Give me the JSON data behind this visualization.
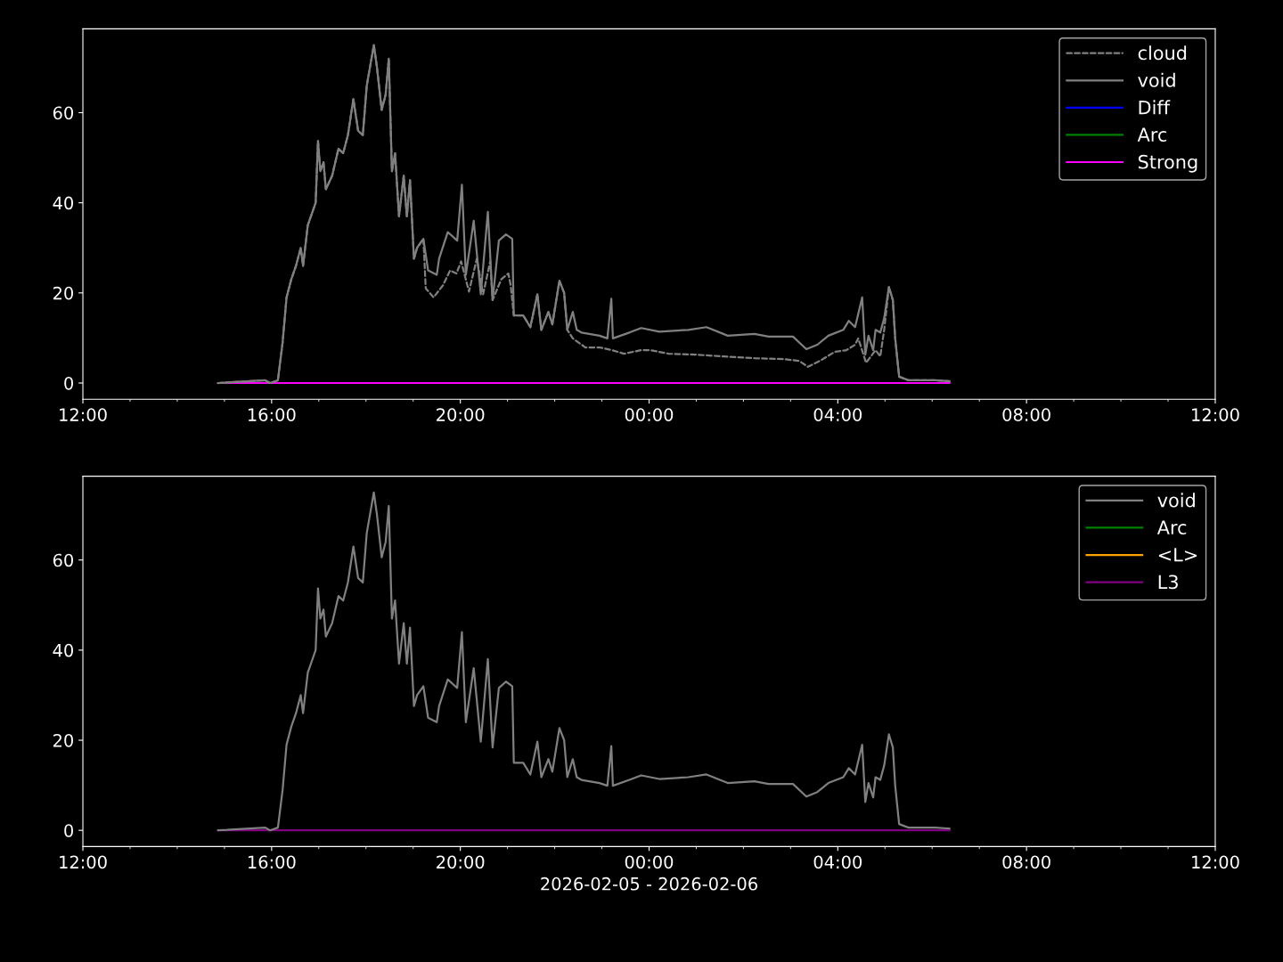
{
  "chart_data": [
    {
      "type": "line",
      "xlim": [
        "2026-02-05T12:00",
        "2026-02-06T12:00"
      ],
      "ylim": [
        -3.6,
        78.6
      ],
      "yticks": [
        0,
        20,
        40,
        60
      ],
      "xticks": [
        {
          "value": "2026-02-05T12:00",
          "label": "12:00"
        },
        {
          "value": "2026-02-05T13:00",
          "label": null
        },
        {
          "value": "2026-02-05T14:00",
          "label": null
        },
        {
          "value": "2026-02-05T15:00",
          "label": null
        },
        {
          "value": "2026-02-05T16:00",
          "label": "16:00"
        },
        {
          "value": "2026-02-05T17:00",
          "label": null
        },
        {
          "value": "2026-02-05T18:00",
          "label": null
        },
        {
          "value": "2026-02-05T19:00",
          "label": null
        },
        {
          "value": "2026-02-05T20:00",
          "label": "20:00"
        },
        {
          "value": "2026-02-05T21:00",
          "label": null
        },
        {
          "value": "2026-02-05T22:00",
          "label": null
        },
        {
          "value": "2026-02-05T23:00",
          "label": null
        },
        {
          "value": "2026-02-06T00:00",
          "label": "00:00"
        },
        {
          "value": "2026-02-06T01:00",
          "label": null
        },
        {
          "value": "2026-02-06T02:00",
          "label": null
        },
        {
          "value": "2026-02-06T03:00",
          "label": null
        },
        {
          "value": "2026-02-06T04:00",
          "label": "04:00"
        },
        {
          "value": "2026-02-06T05:00",
          "label": null
        },
        {
          "value": "2026-02-06T06:00",
          "label": null
        },
        {
          "value": "2026-02-06T07:00",
          "label": null
        },
        {
          "value": "2026-02-06T08:00",
          "label": "08:00"
        },
        {
          "value": "2026-02-06T09:00",
          "label": null
        },
        {
          "value": "2026-02-06T10:00",
          "label": null
        },
        {
          "value": "2026-02-06T11:00",
          "label": null
        },
        {
          "value": "2026-02-06T12:00",
          "label": "12:00"
        }
      ],
      "grid": false,
      "legend": "top right",
      "series": [
        {
          "name": "cloud",
          "color": "#808080",
          "line_style": "dashed",
          "x": [
            "2026-02-05T14:52",
            "2026-02-05T15:52",
            "2026-02-05T15:58",
            "2026-02-05T16:08",
            "2026-02-05T16:14",
            "2026-02-05T16:19",
            "2026-02-05T16:25",
            "2026-02-05T16:31",
            "2026-02-05T16:37",
            "2026-02-05T16:40",
            "2026-02-05T16:46",
            "2026-02-05T16:51",
            "2026-02-05T16:56",
            "2026-02-05T16:59",
            "2026-02-05T17:02",
            "2026-02-05T17:06",
            "2026-02-05T17:09",
            "2026-02-05T17:17",
            "2026-02-05T17:25",
            "2026-02-05T17:31",
            "2026-02-05T17:37",
            "2026-02-05T17:44",
            "2026-02-05T17:50",
            "2026-02-05T17:56",
            "2026-02-05T18:01",
            "2026-02-05T18:05",
            "2026-02-05T18:10",
            "2026-02-05T18:14",
            "2026-02-05T18:20",
            "2026-02-05T18:25",
            "2026-02-05T18:29",
            "2026-02-05T18:33",
            "2026-02-05T18:37",
            "2026-02-05T18:42",
            "2026-02-05T18:48",
            "2026-02-05T18:52",
            "2026-02-05T18:56",
            "2026-02-05T19:01",
            "2026-02-05T19:05",
            "2026-02-05T19:13",
            "2026-02-05T19:16",
            "2026-02-05T19:26",
            "2026-02-05T19:38",
            "2026-02-05T19:47",
            "2026-02-05T19:55",
            "2026-02-05T20:01",
            "2026-02-05T20:11",
            "2026-02-05T20:21",
            "2026-02-05T20:29",
            "2026-02-05T20:38",
            "2026-02-05T20:41",
            "2026-02-05T20:52",
            "2026-02-05T21:01",
            "2026-02-05T21:04",
            "2026-02-05T21:08",
            "2026-02-05T21:20",
            "2026-02-05T21:29",
            "2026-02-05T21:38",
            "2026-02-05T21:43",
            "2026-02-05T21:52",
            "2026-02-05T21:57",
            "2026-02-05T22:06",
            "2026-02-05T22:12",
            "2026-02-05T22:16",
            "2026-02-05T22:23",
            "2026-02-05T22:39",
            "2026-02-05T22:57",
            "2026-02-05T23:13",
            "2026-02-05T23:28",
            "2026-02-05T23:50",
            "2026-02-06T00:02",
            "2026-02-06T00:13",
            "2026-02-06T00:25",
            "2026-02-06T00:58",
            "2026-02-06T01:35",
            "2026-02-06T02:14",
            "2026-02-06T02:52",
            "2026-02-06T03:11",
            "2026-02-06T03:22",
            "2026-02-06T03:37",
            "2026-02-06T03:56",
            "2026-02-06T04:11",
            "2026-02-06T04:22",
            "2026-02-06T04:26",
            "2026-02-06T04:36",
            "2026-02-06T04:48",
            "2026-02-06T04:54",
            "2026-02-06T04:59",
            "2026-02-06T05:05",
            "2026-02-06T05:10",
            "2026-02-06T05:13",
            "2026-02-06T05:18",
            "2026-02-06T05:30",
            "2026-02-06T06:04",
            "2026-02-06T06:22"
          ],
          "values": [
            0,
            0.6,
            0,
            0.6,
            9,
            19,
            23,
            26,
            30,
            26,
            35,
            37.5,
            40,
            53.7,
            47,
            49,
            43,
            46,
            52,
            51,
            55,
            63,
            56,
            55,
            66,
            70,
            75,
            70,
            60.6,
            64,
            72,
            47,
            51,
            37,
            46,
            37,
            45,
            27.6,
            30,
            32,
            21,
            19,
            21.7,
            25,
            24.3,
            27,
            20.3,
            27.6,
            19.7,
            27,
            18.4,
            23,
            24.3,
            21.7,
            15,
            15,
            12.4,
            19.7,
            11.8,
            15.8,
            13,
            22.7,
            20,
            11.8,
            9.9,
            7.9,
            7.9,
            7.3,
            6.5,
            7.3,
            7.3,
            6.9,
            6.5,
            6.3,
            5.9,
            5.5,
            5.3,
            4.9,
            3.6,
            4.9,
            6.9,
            7.3,
            8.5,
            9.9,
            4.5,
            7.3,
            5.9,
            11.8,
            21.3,
            18.4,
            9.9,
            1.4,
            0.6,
            0.6,
            0.4
          ]
        },
        {
          "name": "void",
          "color": "#808080",
          "line_style": "solid",
          "x": [
            "2026-02-05T14:52",
            "2026-02-05T15:52",
            "2026-02-05T15:58",
            "2026-02-05T16:08",
            "2026-02-05T16:14",
            "2026-02-05T16:19",
            "2026-02-05T16:25",
            "2026-02-05T16:31",
            "2026-02-05T16:37",
            "2026-02-05T16:40",
            "2026-02-05T16:46",
            "2026-02-05T16:51",
            "2026-02-05T16:56",
            "2026-02-05T16:59",
            "2026-02-05T17:02",
            "2026-02-05T17:06",
            "2026-02-05T17:09",
            "2026-02-05T17:17",
            "2026-02-05T17:25",
            "2026-02-05T17:31",
            "2026-02-05T17:37",
            "2026-02-05T17:44",
            "2026-02-05T17:50",
            "2026-02-05T17:56",
            "2026-02-05T18:01",
            "2026-02-05T18:05",
            "2026-02-05T18:10",
            "2026-02-05T18:14",
            "2026-02-05T18:20",
            "2026-02-05T18:25",
            "2026-02-05T18:29",
            "2026-02-05T18:33",
            "2026-02-05T18:37",
            "2026-02-05T18:42",
            "2026-02-05T18:48",
            "2026-02-05T18:52",
            "2026-02-05T18:56",
            "2026-02-05T19:01",
            "2026-02-05T19:05",
            "2026-02-05T19:13",
            "2026-02-05T19:19",
            "2026-02-05T19:30",
            "2026-02-05T19:33",
            "2026-02-05T19:44",
            "2026-02-05T19:56",
            "2026-02-05T20:02",
            "2026-02-05T20:07",
            "2026-02-05T20:17",
            "2026-02-05T20:26",
            "2026-02-05T20:35",
            "2026-02-05T20:41",
            "2026-02-05T20:49",
            "2026-02-05T20:58",
            "2026-02-05T21:06",
            "2026-02-05T21:08",
            "2026-02-05T21:20",
            "2026-02-05T21:29",
            "2026-02-05T21:38",
            "2026-02-05T21:43",
            "2026-02-05T21:52",
            "2026-02-05T21:57",
            "2026-02-05T22:06",
            "2026-02-05T22:12",
            "2026-02-05T22:16",
            "2026-02-05T22:23",
            "2026-02-05T22:28",
            "2026-02-05T22:34",
            "2026-02-05T22:57",
            "2026-02-05T23:07",
            "2026-02-05T23:12",
            "2026-02-05T23:14",
            "2026-02-05T23:35",
            "2026-02-05T23:50",
            "2026-02-06T00:13",
            "2026-02-06T00:50",
            "2026-02-06T01:13",
            "2026-02-06T01:40",
            "2026-02-06T02:14",
            "2026-02-06T02:32",
            "2026-02-06T03:03",
            "2026-02-06T03:20",
            "2026-02-06T03:34",
            "2026-02-06T03:48",
            "2026-02-06T04:07",
            "2026-02-06T04:14",
            "2026-02-06T04:22",
            "2026-02-06T04:31",
            "2026-02-06T04:35",
            "2026-02-06T04:39",
            "2026-02-06T04:45",
            "2026-02-06T04:48",
            "2026-02-06T04:54",
            "2026-02-06T04:59",
            "2026-02-06T05:05",
            "2026-02-06T05:10",
            "2026-02-06T05:13",
            "2026-02-06T05:18",
            "2026-02-06T05:30",
            "2026-02-06T06:04",
            "2026-02-06T06:22"
          ],
          "values": [
            0,
            0.6,
            0,
            0.6,
            9,
            19,
            23,
            26,
            30,
            26,
            35,
            37.5,
            40,
            53.7,
            47,
            49,
            43,
            46,
            52,
            51,
            55,
            63,
            56,
            55,
            66,
            70,
            75,
            70,
            60.6,
            64,
            72,
            47,
            51,
            37,
            46,
            37,
            45,
            27.6,
            30,
            32,
            25,
            24,
            27.6,
            33.5,
            31.6,
            44,
            24,
            36,
            19.7,
            38,
            18.4,
            31.6,
            33,
            32,
            15,
            15,
            12.4,
            19.7,
            11.8,
            15.8,
            13,
            22.7,
            20,
            11.8,
            15.8,
            11.8,
            11.2,
            10.5,
            9.9,
            18.7,
            9.9,
            11.2,
            12.2,
            11.4,
            11.8,
            12.4,
            10.5,
            10.9,
            10.3,
            10.3,
            7.5,
            8.5,
            10.5,
            11.8,
            13.8,
            12.4,
            19,
            6.3,
            10.5,
            7.3,
            11.8,
            11.2,
            14.4,
            21.3,
            18.4,
            9.9,
            1.4,
            0.6,
            0.6,
            0.4
          ]
        },
        {
          "name": "Diff",
          "color": "#0000ff",
          "line_style": "solid"
        },
        {
          "name": "Arc",
          "color": "#008000",
          "line_style": "solid"
        },
        {
          "name": "Strong",
          "color": "#ff00ff",
          "line_style": "solid",
          "x": [
            "2026-02-05T14:52",
            "2026-02-06T06:22"
          ],
          "values": [
            0,
            0
          ]
        }
      ]
    },
    {
      "type": "line",
      "xlim": [
        "2026-02-05T12:00",
        "2026-02-06T12:00"
      ],
      "ylim": [
        -3.6,
        78.6
      ],
      "yticks": [
        0,
        20,
        40,
        60
      ],
      "xlabel": "2026-02-05 - 2026-02-06",
      "xticks": [
        {
          "value": "2026-02-05T12:00",
          "label": "12:00"
        },
        {
          "value": "2026-02-05T13:00",
          "label": null
        },
        {
          "value": "2026-02-05T14:00",
          "label": null
        },
        {
          "value": "2026-02-05T15:00",
          "label": null
        },
        {
          "value": "2026-02-05T16:00",
          "label": "16:00"
        },
        {
          "value": "2026-02-05T17:00",
          "label": null
        },
        {
          "value": "2026-02-05T18:00",
          "label": null
        },
        {
          "value": "2026-02-05T19:00",
          "label": null
        },
        {
          "value": "2026-02-05T20:00",
          "label": "20:00"
        },
        {
          "value": "2026-02-05T21:00",
          "label": null
        },
        {
          "value": "2026-02-05T22:00",
          "label": null
        },
        {
          "value": "2026-02-05T23:00",
          "label": null
        },
        {
          "value": "2026-02-06T00:00",
          "label": "00:00"
        },
        {
          "value": "2026-02-06T01:00",
          "label": null
        },
        {
          "value": "2026-02-06T02:00",
          "label": null
        },
        {
          "value": "2026-02-06T03:00",
          "label": null
        },
        {
          "value": "2026-02-06T04:00",
          "label": "04:00"
        },
        {
          "value": "2026-02-06T05:00",
          "label": null
        },
        {
          "value": "2026-02-06T06:00",
          "label": null
        },
        {
          "value": "2026-02-06T07:00",
          "label": null
        },
        {
          "value": "2026-02-06T08:00",
          "label": "08:00"
        },
        {
          "value": "2026-02-06T09:00",
          "label": null
        },
        {
          "value": "2026-02-06T10:00",
          "label": null
        },
        {
          "value": "2026-02-06T11:00",
          "label": null
        },
        {
          "value": "2026-02-06T12:00",
          "label": "12:00"
        }
      ],
      "grid": false,
      "legend": "top right",
      "series": [
        {
          "name": "void",
          "color": "#808080",
          "line_style": "solid",
          "x": [
            "2026-02-05T14:52",
            "2026-02-05T15:52",
            "2026-02-05T15:58",
            "2026-02-05T16:08",
            "2026-02-05T16:14",
            "2026-02-05T16:19",
            "2026-02-05T16:25",
            "2026-02-05T16:31",
            "2026-02-05T16:37",
            "2026-02-05T16:40",
            "2026-02-05T16:46",
            "2026-02-05T16:51",
            "2026-02-05T16:56",
            "2026-02-05T16:59",
            "2026-02-05T17:02",
            "2026-02-05T17:06",
            "2026-02-05T17:09",
            "2026-02-05T17:17",
            "2026-02-05T17:25",
            "2026-02-05T17:31",
            "2026-02-05T17:37",
            "2026-02-05T17:44",
            "2026-02-05T17:50",
            "2026-02-05T17:56",
            "2026-02-05T18:01",
            "2026-02-05T18:05",
            "2026-02-05T18:10",
            "2026-02-05T18:14",
            "2026-02-05T18:20",
            "2026-02-05T18:25",
            "2026-02-05T18:29",
            "2026-02-05T18:33",
            "2026-02-05T18:37",
            "2026-02-05T18:42",
            "2026-02-05T18:48",
            "2026-02-05T18:52",
            "2026-02-05T18:56",
            "2026-02-05T19:01",
            "2026-02-05T19:05",
            "2026-02-05T19:13",
            "2026-02-05T19:19",
            "2026-02-05T19:30",
            "2026-02-05T19:33",
            "2026-02-05T19:44",
            "2026-02-05T19:56",
            "2026-02-05T20:02",
            "2026-02-05T20:07",
            "2026-02-05T20:17",
            "2026-02-05T20:26",
            "2026-02-05T20:35",
            "2026-02-05T20:41",
            "2026-02-05T20:49",
            "2026-02-05T20:58",
            "2026-02-05T21:06",
            "2026-02-05T21:08",
            "2026-02-05T21:20",
            "2026-02-05T21:29",
            "2026-02-05T21:38",
            "2026-02-05T21:43",
            "2026-02-05T21:52",
            "2026-02-05T21:57",
            "2026-02-05T22:06",
            "2026-02-05T22:12",
            "2026-02-05T22:16",
            "2026-02-05T22:23",
            "2026-02-05T22:28",
            "2026-02-05T22:34",
            "2026-02-05T22:57",
            "2026-02-05T23:07",
            "2026-02-05T23:12",
            "2026-02-05T23:14",
            "2026-02-05T23:35",
            "2026-02-05T23:50",
            "2026-02-06T00:13",
            "2026-02-06T00:50",
            "2026-02-06T01:13",
            "2026-02-06T01:40",
            "2026-02-06T02:14",
            "2026-02-06T02:32",
            "2026-02-06T03:03",
            "2026-02-06T03:20",
            "2026-02-06T03:34",
            "2026-02-06T03:48",
            "2026-02-06T04:07",
            "2026-02-06T04:14",
            "2026-02-06T04:22",
            "2026-02-06T04:31",
            "2026-02-06T04:35",
            "2026-02-06T04:39",
            "2026-02-06T04:45",
            "2026-02-06T04:48",
            "2026-02-06T04:54",
            "2026-02-06T04:59",
            "2026-02-06T05:05",
            "2026-02-06T05:10",
            "2026-02-06T05:13",
            "2026-02-06T05:18",
            "2026-02-06T05:30",
            "2026-02-06T06:04",
            "2026-02-06T06:22"
          ],
          "values": [
            0,
            0.6,
            0,
            0.6,
            9,
            19,
            23,
            26,
            30,
            26,
            35,
            37.5,
            40,
            53.7,
            47,
            49,
            43,
            46,
            52,
            51,
            55,
            63,
            56,
            55,
            66,
            70,
            75,
            70,
            60.6,
            64,
            72,
            47,
            51,
            37,
            46,
            37,
            45,
            27.6,
            30,
            32,
            25,
            24,
            27.6,
            33.5,
            31.6,
            44,
            24,
            36,
            19.7,
            38,
            18.4,
            31.6,
            33,
            32,
            15,
            15,
            12.4,
            19.7,
            11.8,
            15.8,
            13,
            22.7,
            20,
            11.8,
            15.8,
            11.8,
            11.2,
            10.5,
            9.9,
            18.7,
            9.9,
            11.2,
            12.2,
            11.4,
            11.8,
            12.4,
            10.5,
            10.9,
            10.3,
            10.3,
            7.5,
            8.5,
            10.5,
            11.8,
            13.8,
            12.4,
            19,
            6.3,
            10.5,
            7.3,
            11.8,
            11.2,
            14.4,
            21.3,
            18.4,
            9.9,
            1.4,
            0.6,
            0.6,
            0.4
          ]
        },
        {
          "name": "Arc",
          "color": "#008000",
          "line_style": "solid"
        },
        {
          "name": "<L>",
          "color": "#ffa500",
          "line_style": "solid"
        },
        {
          "name": "L3",
          "color": "#800080",
          "line_style": "solid",
          "x": [
            "2026-02-05T14:52",
            "2026-02-06T06:22"
          ],
          "values": [
            0,
            0
          ]
        }
      ]
    }
  ]
}
